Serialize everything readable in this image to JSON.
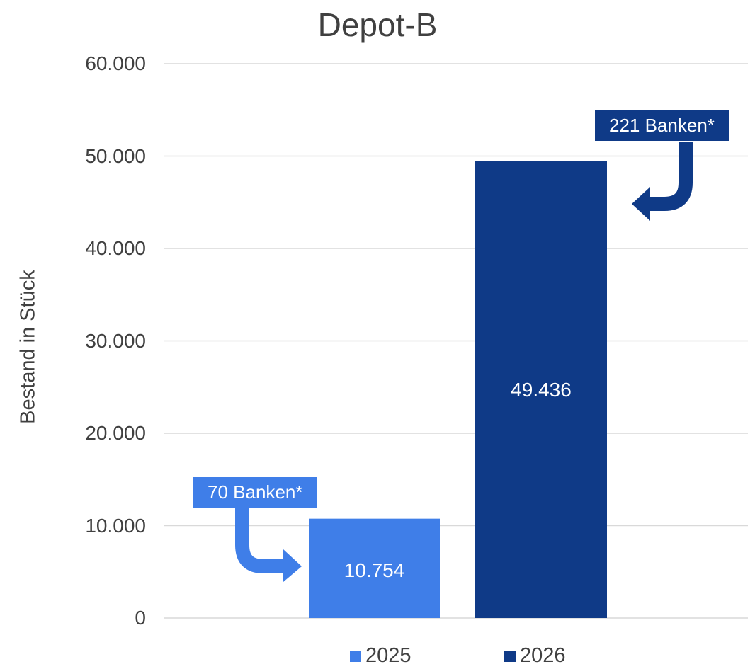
{
  "chart_data": {
    "type": "bar",
    "title": "Depot-B",
    "ylabel": "Bestand in Stück",
    "ylim": [
      0,
      60000
    ],
    "y_ticks": [
      "0",
      "10.000",
      "20.000",
      "30.000",
      "40.000",
      "50.000",
      "60.000"
    ],
    "y_tick_values": [
      0,
      10000,
      20000,
      30000,
      40000,
      50000,
      60000
    ],
    "grid": true,
    "legend_position": "bottom",
    "series": [
      {
        "name": "2025",
        "value": 10754,
        "label": "10.754",
        "color": "#3f7ee8",
        "callout": "70 Banken*"
      },
      {
        "name": "2026",
        "value": 49436,
        "label": "49.436",
        "color": "#0f3a87",
        "callout": "221 Banken*"
      }
    ]
  }
}
